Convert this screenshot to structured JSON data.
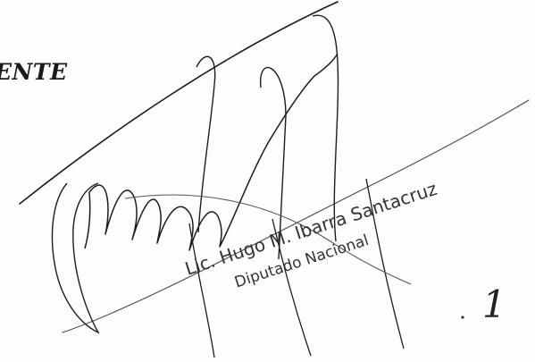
{
  "document": {
    "heading_fragment": "ENTE",
    "stamp": {
      "name": "Lic. Hugo M. Ibarra Santacruz",
      "title": "Diputado Nacional"
    },
    "page_number": "1"
  },
  "colors": {
    "ink": "#222222",
    "stamp_ink": "#333333",
    "paper": "#fdfdfd"
  }
}
